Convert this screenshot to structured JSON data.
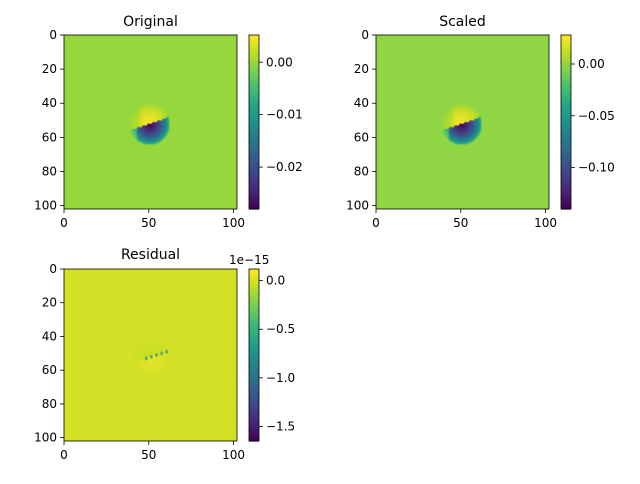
{
  "chart_data": [
    {
      "type": "heatmap",
      "title": "Original",
      "x_ticks": [
        0,
        50,
        100
      ],
      "y_ticks": [
        0,
        20,
        40,
        60,
        80,
        100
      ],
      "xlim": [
        0,
        102
      ],
      "ylim": [
        102,
        0
      ],
      "grid_size": 102,
      "feature_center": [
        50,
        52
      ],
      "background_value": 0.0,
      "positive_peak": 0.0052,
      "negative_peak": -0.028,
      "colorbar": {
        "range": [
          -0.028,
          0.0052
        ],
        "ticks": [
          0.0,
          -0.01,
          -0.02
        ],
        "tick_labels": [
          "0.00",
          "−0.01",
          "−0.02"
        ],
        "offset_label": ""
      }
    },
    {
      "type": "heatmap",
      "title": "Scaled",
      "x_ticks": [
        0,
        50,
        100
      ],
      "y_ticks": [
        0,
        20,
        40,
        60,
        80,
        100
      ],
      "xlim": [
        0,
        102
      ],
      "ylim": [
        102,
        0
      ],
      "grid_size": 102,
      "feature_center": [
        50,
        52
      ],
      "background_value": 0.0,
      "positive_peak": 0.028,
      "negative_peak": -0.14,
      "colorbar": {
        "range": [
          -0.14,
          0.028
        ],
        "ticks": [
          0.0,
          -0.05,
          -0.1
        ],
        "tick_labels": [
          "0.00",
          "−0.05",
          "−0.10"
        ],
        "offset_label": ""
      }
    },
    {
      "type": "heatmap",
      "title": "Residual",
      "x_ticks": [
        0,
        50,
        100
      ],
      "y_ticks": [
        0,
        20,
        40,
        60,
        80,
        100
      ],
      "xlim": [
        0,
        102
      ],
      "ylim": [
        102,
        0
      ],
      "grid_size": 102,
      "feature_center": [
        50,
        52
      ],
      "background_value": 0.0,
      "positive_peak": 0.12,
      "negative_peak": -1.65,
      "colorbar": {
        "range": [
          -1.65,
          0.12
        ],
        "ticks": [
          0.0,
          -0.5,
          -1.0,
          -1.5
        ],
        "tick_labels": [
          "0.0",
          "−0.5",
          "−1.0",
          "−1.5"
        ],
        "offset_label": "1e−15"
      }
    }
  ],
  "colormap": "viridis"
}
